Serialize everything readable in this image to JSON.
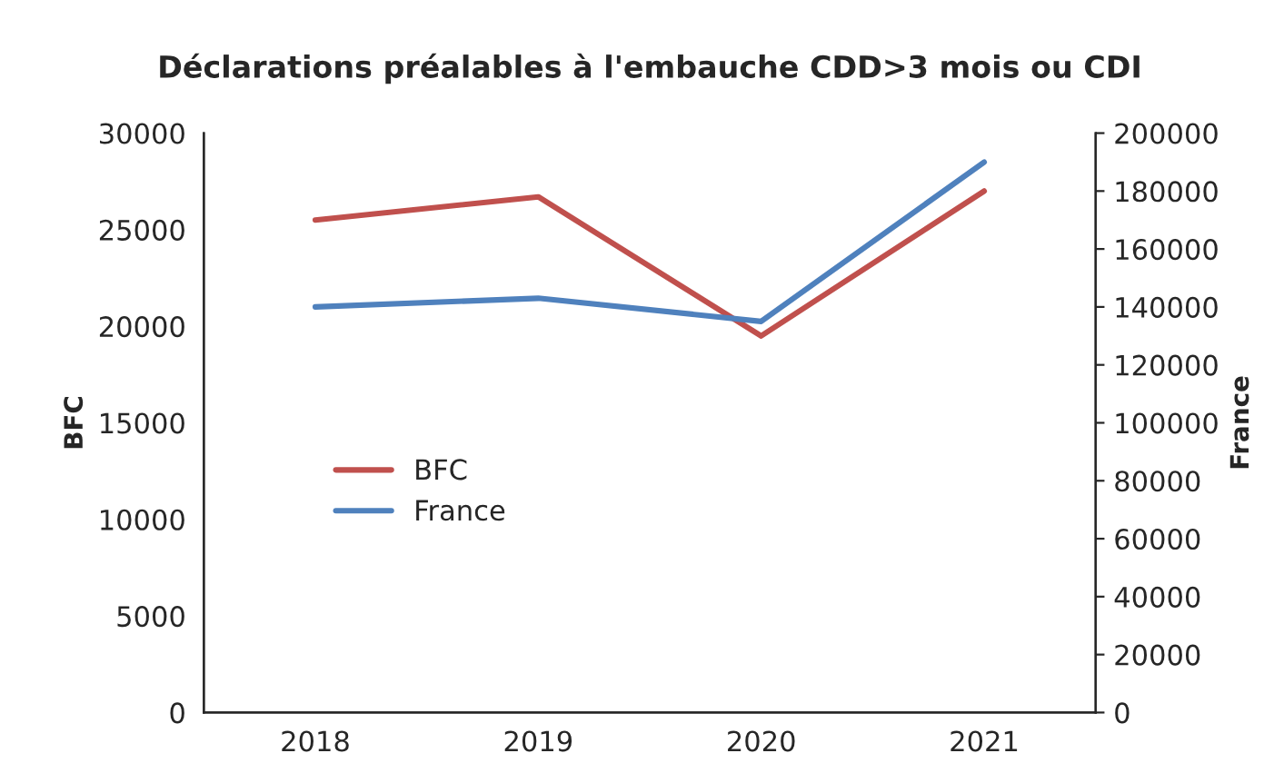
{
  "chart_data": {
    "type": "line",
    "title": "Déclarations préalables à l'embauche CDD>3 mois ou CDI",
    "categories": [
      "2018",
      "2019",
      "2020",
      "2021"
    ],
    "series": [
      {
        "name": "BFC",
        "color": "#c0504d",
        "values": [
          25500,
          26700,
          19500,
          27000
        ]
      },
      {
        "name": "France",
        "color": "#4f81bd",
        "values": [
          140000,
          143000,
          135000,
          190000
        ],
        "axis": "y2"
      }
    ],
    "ylabel": "BFC",
    "y2label": "France",
    "ylim": [
      0,
      30000
    ],
    "yticks": [
      0,
      5000,
      10000,
      15000,
      20000,
      25000,
      30000
    ],
    "y2lim": [
      0,
      200000
    ],
    "y2ticks": [
      0,
      20000,
      40000,
      60000,
      80000,
      100000,
      120000,
      140000,
      160000,
      180000,
      200000
    ],
    "legend": "center left",
    "grid": false,
    "marker": "none",
    "line_style": "solid"
  }
}
